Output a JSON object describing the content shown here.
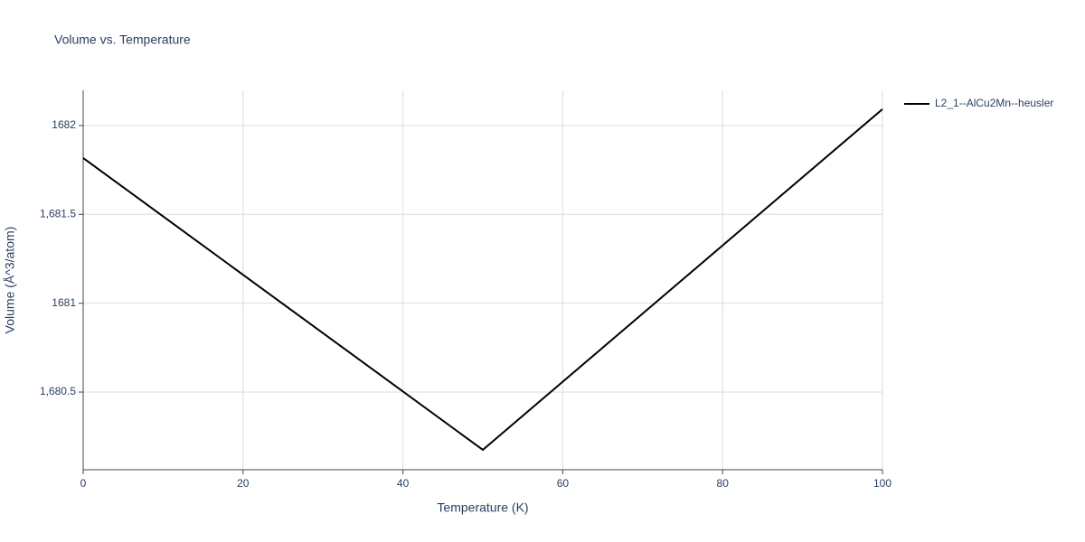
{
  "chart_data": {
    "type": "line",
    "title": "Volume vs. Temperature",
    "xlabel": "Temperature (K)",
    "ylabel": "Volume (Å^3/atom)",
    "x": [
      0,
      50,
      100
    ],
    "series": [
      {
        "name": "L2_1--AlCu2Mn--heusler",
        "color": "#000000",
        "values": [
          1681.817,
          1680.175,
          1682.092
        ]
      }
    ],
    "xlim": [
      0,
      100
    ],
    "xticks": [
      0,
      20,
      40,
      60,
      80,
      100
    ],
    "ylim": [
      1680.063,
      1682.198
    ],
    "yticks": [
      {
        "value": 1680.5,
        "label": "1,680.5"
      },
      1681,
      {
        "value": 1681.5,
        "label": "1,681.5"
      },
      1682
    ],
    "grid": true,
    "legend": "right"
  }
}
